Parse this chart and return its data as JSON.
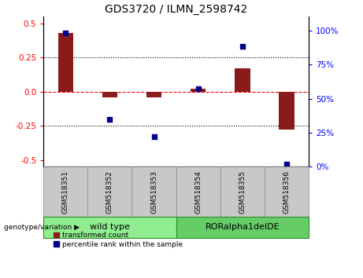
{
  "title": "GDS3720 / ILMN_2598742",
  "samples": [
    "GSM518351",
    "GSM518352",
    "GSM518353",
    "GSM518354",
    "GSM518355",
    "GSM518356"
  ],
  "red_values": [
    0.43,
    -0.04,
    -0.04,
    0.02,
    0.17,
    -0.28
  ],
  "blue_values_pct": [
    98,
    35,
    22,
    57,
    88,
    2
  ],
  "groups": [
    {
      "label": "wild type",
      "indices": [
        0,
        1,
        2
      ],
      "color": "#90EE90"
    },
    {
      "label": "RORalpha1delDE",
      "indices": [
        3,
        4,
        5
      ],
      "color": "#66CC66"
    }
  ],
  "group_label": "genotype/variation",
  "ylim_left": [
    -0.55,
    0.55
  ],
  "ylim_right": [
    0,
    110
  ],
  "yticks_left": [
    -0.5,
    -0.25,
    0.0,
    0.25,
    0.5
  ],
  "yticks_right": [
    0,
    25,
    50,
    75,
    100
  ],
  "hlines": [
    0.25,
    -0.25
  ],
  "zero_line": 0.0,
  "red_color": "#8B1A1A",
  "dot_color": "#00008B",
  "legend_red": "transformed count",
  "legend_blue": "percentile rank within the sample",
  "bar_width": 0.35,
  "background_color": "#ffffff",
  "plot_bg": "#ffffff",
  "title_fontsize": 10,
  "tick_fontsize": 7.5,
  "sample_fontsize": 6.5,
  "group_fontsize": 8,
  "legend_fontsize": 6.5
}
